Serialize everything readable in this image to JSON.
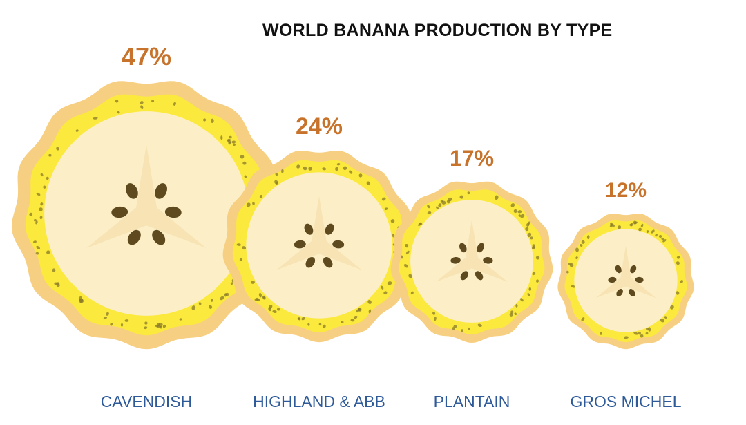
{
  "chart_data": {
    "type": "pictorial-bubble",
    "title": "WORLD BANANA PRODUCTION BY TYPE",
    "categories": [
      "CAVENDISH",
      "HIGHLAND & ABB",
      "PLANTAIN",
      "GROS MICHEL"
    ],
    "values": [
      47,
      24,
      17,
      12
    ],
    "labels": [
      "47%",
      "24%",
      "17%",
      "12%"
    ],
    "unit": "%"
  },
  "colors": {
    "label": "#C8732B",
    "category": "#2E5A9A",
    "title": "#111111",
    "peel_outer": "#F7CF82",
    "peel_inner": "#FBE93E",
    "flesh": "#FCEFC7",
    "seed": "#5E4A1E"
  }
}
